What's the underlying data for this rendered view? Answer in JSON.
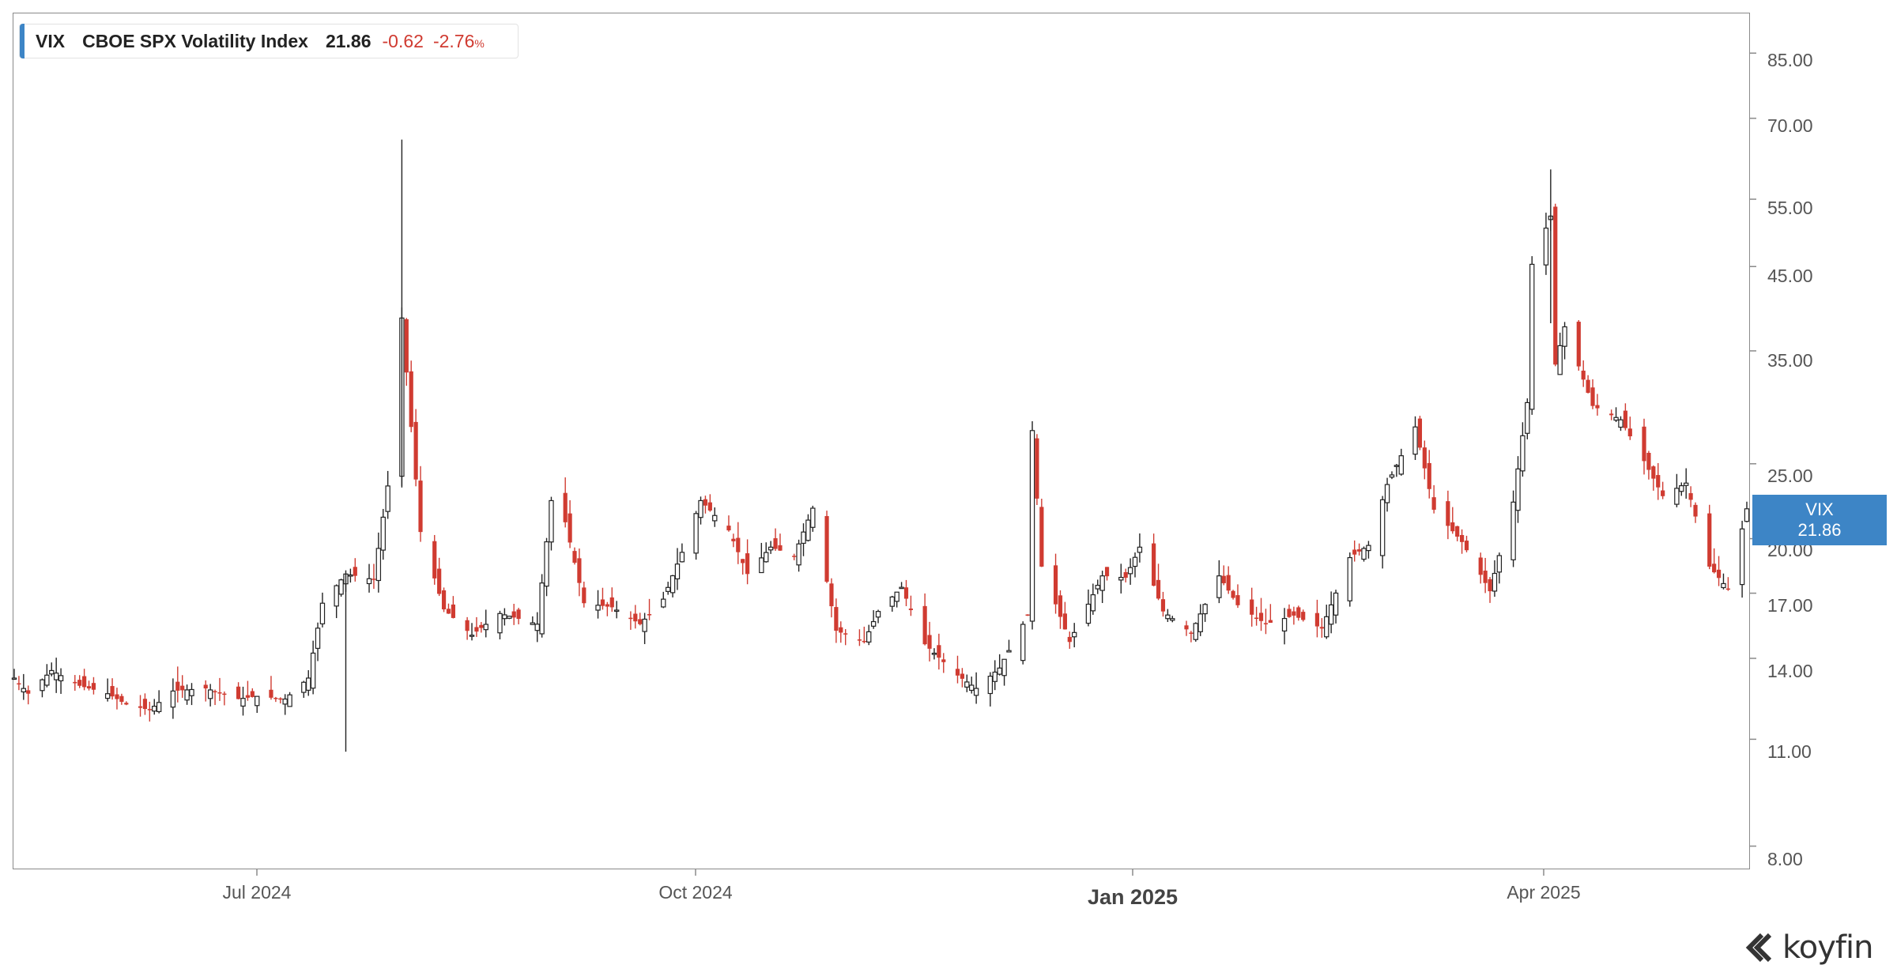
{
  "legend": {
    "symbol": "VIX",
    "name": "CBOE SPX Volatility Index",
    "last": "21.86",
    "change": "-0.62",
    "change_pct": "-2.76",
    "pct_sign": "%"
  },
  "price_tag": {
    "symbol": "VIX",
    "value": "21.86"
  },
  "brand": {
    "name": "koyfin",
    "icon": "koyfin-logo-icon"
  },
  "colors": {
    "down": "#d03b31",
    "up_body": "#ffffff",
    "up_outline": "#222222",
    "bearish_black": "#222222",
    "accent": "#3d85c6"
  },
  "chart_data": {
    "type": "candlestick",
    "title": "",
    "y_scale": "log",
    "ylim": [
      7.5,
      95
    ],
    "y_ticks": [
      "85.00",
      "70.00",
      "55.00",
      "45.00",
      "35.00",
      "25.00",
      "20.00",
      "17.00",
      "14.00",
      "11.00",
      "8.00"
    ],
    "x_ticks": [
      {
        "label": "Jul 2024",
        "major": false
      },
      {
        "label": "Oct 2024",
        "major": false
      },
      {
        "label": "Jan 2025",
        "major": true
      },
      {
        "label": "Apr 2025",
        "major": false
      }
    ],
    "x_range": [
      "2024-05-14",
      "2025-05-20"
    ],
    "grid": false,
    "last_value": 21.86,
    "closes": [
      {
        "x": "2024-05-14",
        "y": 13.2
      },
      {
        "x": "2024-05-17",
        "y": 12.6
      },
      {
        "x": "2024-05-22",
        "y": 13.5
      },
      {
        "x": "2024-05-28",
        "y": 12.9
      },
      {
        "x": "2024-06-03",
        "y": 12.6
      },
      {
        "x": "2024-06-07",
        "y": 12.2
      },
      {
        "x": "2024-06-12",
        "y": 12.0
      },
      {
        "x": "2024-06-17",
        "y": 12.7
      },
      {
        "x": "2024-06-24",
        "y": 12.8
      },
      {
        "x": "2024-07-01",
        "y": 12.4
      },
      {
        "x": "2024-07-05",
        "y": 12.5
      },
      {
        "x": "2024-07-11",
        "y": 12.4
      },
      {
        "x": "2024-07-16",
        "y": 13.2
      },
      {
        "x": "2024-07-19",
        "y": 16.5
      },
      {
        "x": "2024-07-24",
        "y": 18.0
      },
      {
        "x": "2024-07-30",
        "y": 17.7
      },
      {
        "x": "2024-08-02",
        "y": 23.4
      },
      {
        "x": "2024-08-05",
        "y": 38.6
      },
      {
        "x": "2024-08-07",
        "y": 27.9
      },
      {
        "x": "2024-08-09",
        "y": 20.4
      },
      {
        "x": "2024-08-14",
        "y": 16.2
      },
      {
        "x": "2024-08-20",
        "y": 15.0
      },
      {
        "x": "2024-08-26",
        "y": 16.0
      },
      {
        "x": "2024-09-03",
        "y": 15.5
      },
      {
        "x": "2024-09-06",
        "y": 22.4
      },
      {
        "x": "2024-09-09",
        "y": 21.0
      },
      {
        "x": "2024-09-13",
        "y": 16.5
      },
      {
        "x": "2024-09-19",
        "y": 16.3
      },
      {
        "x": "2024-09-25",
        "y": 15.5
      },
      {
        "x": "2024-09-30",
        "y": 16.7
      },
      {
        "x": "2024-10-04",
        "y": 19.2
      },
      {
        "x": "2024-10-08",
        "y": 22.4
      },
      {
        "x": "2024-10-14",
        "y": 20.5
      },
      {
        "x": "2024-10-18",
        "y": 18.0
      },
      {
        "x": "2024-10-23",
        "y": 19.5
      },
      {
        "x": "2024-10-28",
        "y": 19.0
      },
      {
        "x": "2024-11-01",
        "y": 21.9
      },
      {
        "x": "2024-11-06",
        "y": 15.2
      },
      {
        "x": "2024-11-12",
        "y": 14.7
      },
      {
        "x": "2024-11-15",
        "y": 16.1
      },
      {
        "x": "2024-11-20",
        "y": 17.3
      },
      {
        "x": "2024-11-25",
        "y": 14.6
      },
      {
        "x": "2024-12-02",
        "y": 13.3
      },
      {
        "x": "2024-12-06",
        "y": 12.8
      },
      {
        "x": "2024-12-11",
        "y": 13.6
      },
      {
        "x": "2024-12-17",
        "y": 15.9
      },
      {
        "x": "2024-12-18",
        "y": 27.6
      },
      {
        "x": "2024-12-20",
        "y": 18.4
      },
      {
        "x": "2024-12-26",
        "y": 14.7
      },
      {
        "x": "2025-01-02",
        "y": 17.9
      },
      {
        "x": "2025-01-07",
        "y": 17.8
      },
      {
        "x": "2025-01-10",
        "y": 19.5
      },
      {
        "x": "2025-01-15",
        "y": 16.1
      },
      {
        "x": "2025-01-21",
        "y": 15.1
      },
      {
        "x": "2025-01-27",
        "y": 17.9
      },
      {
        "x": "2025-01-31",
        "y": 16.4
      },
      {
        "x": "2025-02-06",
        "y": 15.5
      },
      {
        "x": "2025-02-12",
        "y": 15.9
      },
      {
        "x": "2025-02-18",
        "y": 15.3
      },
      {
        "x": "2025-02-24",
        "y": 18.9
      },
      {
        "x": "2025-02-28",
        "y": 19.6
      },
      {
        "x": "2025-03-04",
        "y": 23.5
      },
      {
        "x": "2025-03-10",
        "y": 27.9
      },
      {
        "x": "2025-03-14",
        "y": 21.8
      },
      {
        "x": "2025-03-20",
        "y": 19.8
      },
      {
        "x": "2025-03-26",
        "y": 17.1
      },
      {
        "x": "2025-03-31",
        "y": 22.3
      },
      {
        "x": "2025-04-03",
        "y": 30.0
      },
      {
        "x": "2025-04-04",
        "y": 45.3
      },
      {
        "x": "2025-04-08",
        "y": 52.3
      },
      {
        "x": "2025-04-09",
        "y": 33.6
      },
      {
        "x": "2025-04-11",
        "y": 37.6
      },
      {
        "x": "2025-04-17",
        "y": 29.7
      },
      {
        "x": "2025-04-23",
        "y": 28.5
      },
      {
        "x": "2025-04-28",
        "y": 25.2
      },
      {
        "x": "2025-05-02",
        "y": 22.7
      },
      {
        "x": "2025-05-07",
        "y": 23.6
      },
      {
        "x": "2025-05-12",
        "y": 18.4
      },
      {
        "x": "2025-05-16",
        "y": 17.2
      },
      {
        "x": "2025-05-20",
        "y": 21.86
      }
    ]
  }
}
